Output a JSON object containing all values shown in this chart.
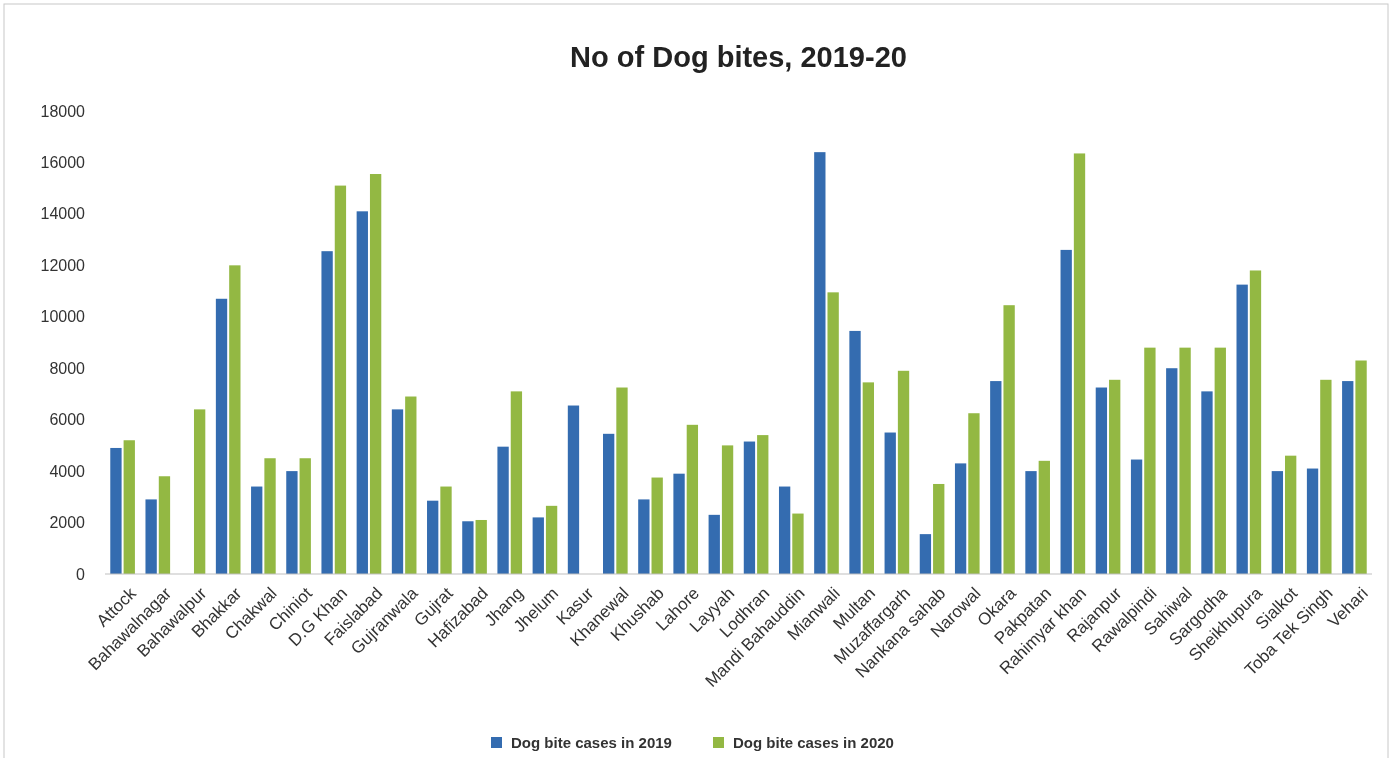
{
  "chart_data": {
    "type": "bar",
    "title": "No of Dog bites, 2019-20",
    "categories": [
      "Attock",
      "Bahawalnagar",
      "Bahawalpur",
      "Bhakkar",
      "Chakwal",
      "Chiniot",
      "D.G Khan",
      "Faislabad",
      "Gujranwala",
      "Gujrat",
      "Hafizabad",
      "Jhang",
      "Jhelum",
      "Kasur",
      "Khanewal",
      "Khushab",
      "Lahore",
      "Layyah",
      "Lodhran",
      "Mandi Bahauddin",
      "Mianwali",
      "Multan",
      "Muzaffargarh",
      "Nankana sahab",
      "Narowal",
      "Okara",
      "Pakpatan",
      "Rahimyar khan",
      "Rajanpur",
      "Rawalpindi",
      "Sahiwal",
      "Sargodha",
      "Sheikhupura",
      "Sialkot",
      "Toba Tek Singh",
      "Vehari"
    ],
    "series": [
      {
        "name": "Dog bite cases in 2019",
        "color": "#346cb0",
        "values": [
          4900,
          2900,
          null,
          10700,
          3400,
          4000,
          12550,
          14100,
          6400,
          2850,
          2050,
          4950,
          2200,
          6550,
          5450,
          2900,
          3900,
          2300,
          5150,
          3400,
          16400,
          9450,
          5500,
          1550,
          4300,
          7500,
          4000,
          12600,
          7250,
          4450,
          8000,
          7100,
          11250,
          4000,
          4100,
          7500
        ]
      },
      {
        "name": "Dog bite cases in 2020",
        "color": "#93b843",
        "values": [
          5200,
          3800,
          6400,
          12000,
          4500,
          4500,
          15100,
          15550,
          6900,
          3400,
          2100,
          7100,
          2650,
          null,
          7250,
          3750,
          5800,
          5000,
          5400,
          2350,
          10950,
          7450,
          7900,
          3500,
          6250,
          10450,
          4400,
          16350,
          7550,
          8800,
          8800,
          8800,
          11800,
          4600,
          7550,
          8300
        ]
      }
    ],
    "ylim": [
      0,
      18000
    ],
    "yticks": [
      0,
      2000,
      4000,
      6000,
      8000,
      10000,
      12000,
      14000,
      16000,
      18000
    ],
    "grid": false,
    "legend": "bottom"
  }
}
